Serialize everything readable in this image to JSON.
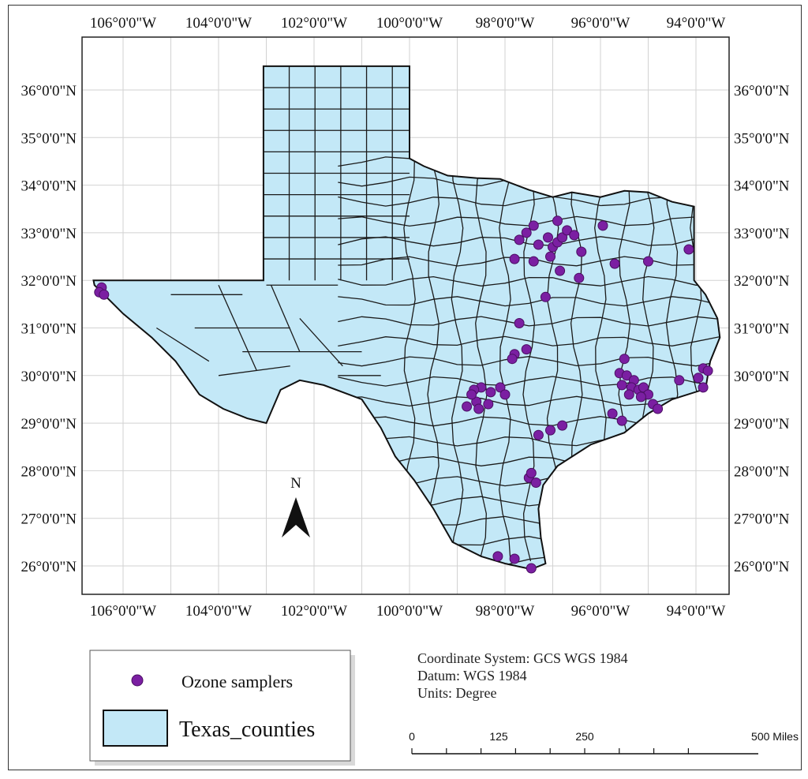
{
  "map": {
    "lon_labels": [
      "106°0'0\"W",
      "104°0'0\"W",
      "102°0'0\"W",
      "100°0'0\"W",
      "98°0'0\"W",
      "96°0'0\"W",
      "94°0'0\"W"
    ],
    "lat_labels": [
      "36°0'0\"N",
      "35°0'0\"N",
      "34°0'0\"N",
      "33°0'0\"N",
      "32°0'0\"N",
      "31°0'0\"N",
      "30°0'0\"N",
      "29°0'0\"N",
      "28°0'0\"N",
      "27°0'0\"N",
      "26°0'0\"N"
    ],
    "north_arrow": "N",
    "colors": {
      "counties_fill": "#c3e8f7",
      "sampler_fill": "#7b1fa2",
      "grid": "#d0d0d0"
    }
  },
  "legend": {
    "ozone_label": "Ozone samplers",
    "counties_label": "Texas_counties"
  },
  "info": {
    "coordinate_system": "Coordinate System: GCS WGS 1984",
    "datum": "Datum: WGS 1984",
    "units": "Units: Degree"
  },
  "scale_bar": {
    "labels": [
      "0",
      "125",
      "250",
      "500 Miles"
    ]
  },
  "samplers": [
    [
      -106.45,
      31.85
    ],
    [
      -106.5,
      31.75
    ],
    [
      -106.4,
      31.7
    ],
    [
      -97.1,
      32.9
    ],
    [
      -97.3,
      32.75
    ],
    [
      -97.0,
      32.7
    ],
    [
      -96.9,
      32.8
    ],
    [
      -96.8,
      32.9
    ],
    [
      -96.7,
      33.05
    ],
    [
      -96.9,
      33.25
    ],
    [
      -97.4,
      33.15
    ],
    [
      -97.55,
      33.0
    ],
    [
      -97.7,
      32.85
    ],
    [
      -97.05,
      32.5
    ],
    [
      -96.55,
      32.95
    ],
    [
      -96.4,
      32.6
    ],
    [
      -95.95,
      33.15
    ],
    [
      -96.85,
      32.2
    ],
    [
      -97.8,
      32.45
    ],
    [
      -97.4,
      32.4
    ],
    [
      -95.7,
      32.35
    ],
    [
      -95.0,
      32.4
    ],
    [
      -94.15,
      32.65
    ],
    [
      -96.45,
      32.05
    ],
    [
      -97.15,
      31.65
    ],
    [
      -97.7,
      31.1
    ],
    [
      -97.8,
      30.45
    ],
    [
      -97.85,
      30.35
    ],
    [
      -97.55,
      30.55
    ],
    [
      -98.5,
      29.75
    ],
    [
      -98.3,
      29.65
    ],
    [
      -98.6,
      29.45
    ],
    [
      -98.35,
      29.4
    ],
    [
      -98.55,
      29.3
    ],
    [
      -98.65,
      29.7
    ],
    [
      -98.7,
      29.6
    ],
    [
      -98.8,
      29.35
    ],
    [
      -98.1,
      29.75
    ],
    [
      -98.0,
      29.6
    ],
    [
      -95.6,
      30.05
    ],
    [
      -95.45,
      30.0
    ],
    [
      -95.3,
      29.9
    ],
    [
      -95.55,
      29.8
    ],
    [
      -95.35,
      29.75
    ],
    [
      -95.2,
      29.7
    ],
    [
      -95.1,
      29.75
    ],
    [
      -95.0,
      29.6
    ],
    [
      -95.15,
      29.55
    ],
    [
      -95.4,
      29.6
    ],
    [
      -94.9,
      29.4
    ],
    [
      -94.8,
      29.3
    ],
    [
      -95.55,
      29.05
    ],
    [
      -95.75,
      29.2
    ],
    [
      -95.5,
      30.35
    ],
    [
      -94.35,
      29.9
    ],
    [
      -93.85,
      30.15
    ],
    [
      -93.95,
      29.95
    ],
    [
      -93.75,
      30.1
    ],
    [
      -93.85,
      29.75
    ],
    [
      -97.3,
      28.75
    ],
    [
      -97.05,
      28.85
    ],
    [
      -96.8,
      28.95
    ],
    [
      -97.5,
      27.85
    ],
    [
      -97.35,
      27.75
    ],
    [
      -97.45,
      27.95
    ],
    [
      -98.15,
      26.2
    ],
    [
      -97.8,
      26.15
    ],
    [
      -97.45,
      25.95
    ]
  ]
}
